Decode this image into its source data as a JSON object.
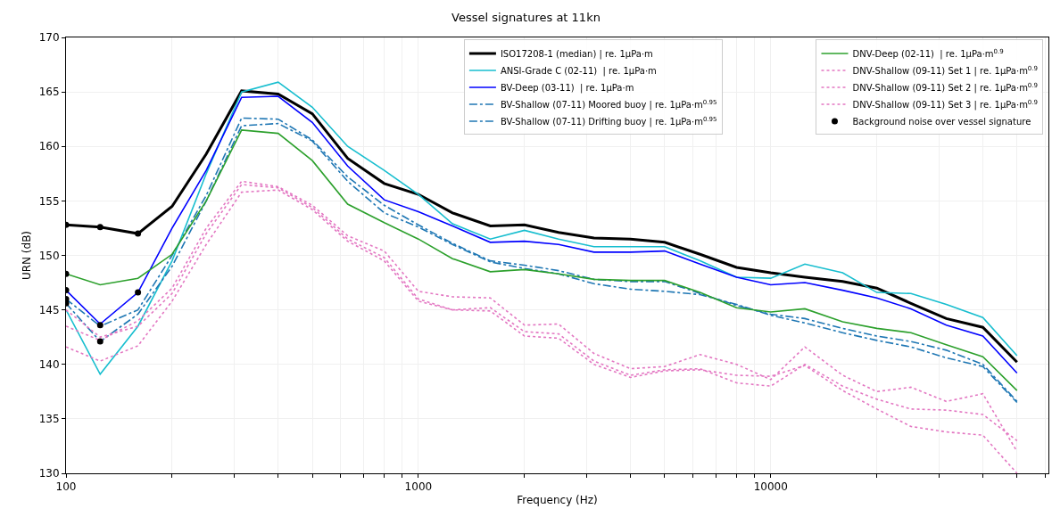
{
  "chart_data": {
    "type": "line",
    "title": "Vessel signatures at 11kn",
    "xlabel": "Frequency (Hz)",
    "ylabel": "URN (dB)",
    "x": [
      100,
      125,
      160,
      200,
      250,
      315,
      400,
      500,
      630,
      800,
      1000,
      1250,
      1600,
      2000,
      2500,
      3150,
      4000,
      5000,
      6300,
      8000,
      10000,
      12500,
      16000,
      20000,
      25000,
      31500,
      40000,
      50000
    ],
    "log": "x",
    "grid": true,
    "legend": "top right",
    "marker": "none",
    "xlim": [
      100,
      61400
    ],
    "ylim": [
      130,
      170
    ],
    "xticks": [
      100,
      {
        "value": 200,
        "label": null
      },
      {
        "value": 300,
        "label": null
      },
      {
        "value": 400,
        "label": null
      },
      {
        "value": 500,
        "label": null
      },
      {
        "value": 600,
        "label": null
      },
      {
        "value": 700,
        "label": null
      },
      {
        "value": 800,
        "label": null
      },
      {
        "value": 900,
        "label": null
      },
      1000,
      {
        "value": 2000,
        "label": null
      },
      {
        "value": 3000,
        "label": null
      },
      {
        "value": 4000,
        "label": null
      },
      {
        "value": 5000,
        "label": null
      },
      {
        "value": 6000,
        "label": null
      },
      {
        "value": 7000,
        "label": null
      },
      {
        "value": 8000,
        "label": null
      },
      {
        "value": 9000,
        "label": null
      },
      10000,
      {
        "value": 20000,
        "label": null
      },
      {
        "value": 30000,
        "label": null
      },
      {
        "value": 40000,
        "label": null
      },
      {
        "value": 50000,
        "label": null
      },
      {
        "value": 60000,
        "label": null
      }
    ],
    "yticks": [
      130,
      135,
      140,
      145,
      150,
      155,
      160,
      165,
      170
    ],
    "series": [
      {
        "name": "ISO17208-1 (median) | re. 1μPa·m",
        "color": "#000000",
        "line_style": "solid",
        "values": [
          152.8,
          152.6,
          152.0,
          154.5,
          159.3,
          165.1,
          164.8,
          163.0,
          158.9,
          156.6,
          155.6,
          153.9,
          152.7,
          152.8,
          152.1,
          151.6,
          151.5,
          151.2,
          150.1,
          148.9,
          148.4,
          148.0,
          147.6,
          147.0,
          145.6,
          144.2,
          143.4,
          140.2
        ]
      },
      {
        "name": "ANSI-Grade C (02-11)  | re. 1μPa·m",
        "color": "#17becf",
        "line_style": "solid",
        "values": [
          145.0,
          139.1,
          143.5,
          149.5,
          157.5,
          165.0,
          165.9,
          163.6,
          160.0,
          157.8,
          155.6,
          152.9,
          151.5,
          152.3,
          151.5,
          150.8,
          150.8,
          150.8,
          149.5,
          148.0,
          147.9,
          149.2,
          148.4,
          146.6,
          146.5,
          145.5,
          144.3,
          140.8
        ]
      },
      {
        "name": "BV-Deep (03-11)  | re. 1μPa·m",
        "color": "#0000ff",
        "line_style": "solid",
        "values": [
          146.8,
          143.7,
          146.6,
          152.5,
          157.8,
          164.5,
          164.6,
          162.2,
          158.2,
          155.1,
          154.0,
          152.7,
          151.2,
          151.3,
          151.0,
          150.3,
          150.3,
          150.4,
          149.2,
          148.0,
          147.3,
          147.5,
          146.8,
          146.1,
          145.1,
          143.6,
          142.6,
          139.2
        ]
      },
      {
        "name": "BV-Shallow (07-11) Moored buoy | re. 1μPa·m$^{0.95}$",
        "color": "#1f77b4",
        "line_style": "dashdot",
        "values": [
          146.0,
          143.5,
          145.0,
          150.0,
          155.5,
          162.6,
          162.5,
          160.6,
          157.2,
          154.6,
          152.8,
          151.1,
          149.5,
          149.1,
          148.6,
          147.8,
          147.6,
          147.6,
          146.5,
          145.4,
          144.6,
          144.2,
          143.3,
          142.6,
          142.1,
          141.3,
          140.0,
          136.6
        ]
      },
      {
        "name": "BV-Shallow (07-11) Drifting buoy | re. 1μPa·m$^{0.95}$",
        "color": "#1f77b4",
        "line_style": "dashdot",
        "values": [
          145.6,
          142.1,
          144.6,
          149.0,
          155.0,
          161.9,
          162.1,
          160.5,
          156.8,
          153.9,
          152.6,
          151.0,
          149.4,
          148.8,
          148.3,
          147.4,
          146.9,
          146.7,
          146.4,
          145.5,
          144.5,
          143.8,
          142.9,
          142.2,
          141.6,
          140.6,
          139.8,
          136.5
        ]
      },
      {
        "name": "DNV-Deep (02-11)  | re. 1μPa·m$^{0.9}$",
        "color": "#2ca02c",
        "line_style": "solid",
        "values": [
          148.3,
          147.3,
          147.9,
          150.1,
          155.0,
          161.5,
          161.2,
          158.7,
          154.7,
          153.0,
          151.5,
          149.7,
          148.5,
          148.7,
          148.3,
          147.8,
          147.7,
          147.7,
          146.6,
          145.2,
          144.8,
          145.1,
          143.9,
          143.3,
          142.9,
          141.8,
          140.7,
          137.6
        ]
      },
      {
        "name": "DNV-Shallow (09-11) Set 1 | re. 1μPa·m$^{0.9}$",
        "color": "#e377c2",
        "line_style": "dotted",
        "values": [
          143.5,
          142.2,
          144.0,
          147.0,
          152.5,
          156.8,
          156.3,
          154.6,
          151.8,
          150.4,
          146.7,
          146.2,
          146.1,
          143.6,
          143.7,
          141.0,
          139.6,
          139.8,
          140.9,
          140.0,
          138.6,
          141.6,
          139.0,
          137.5,
          137.9,
          136.6,
          137.3,
          132.0
        ]
      },
      {
        "name": "DNV-Shallow (09-11) Set 2 | re. 1μPa·m$^{0.9}$",
        "color": "#e377c2",
        "line_style": "dotted",
        "values": [
          145.0,
          142.5,
          143.5,
          146.5,
          152.0,
          156.5,
          156.2,
          154.4,
          151.5,
          149.8,
          146.0,
          145.0,
          145.2,
          143.0,
          142.8,
          140.3,
          139.0,
          139.5,
          139.6,
          138.3,
          138.0,
          140.0,
          138.0,
          136.8,
          135.9,
          135.8,
          135.4,
          133.0
        ]
      },
      {
        "name": "DNV-Shallow (09-11) Set 3 | re. 1μPa·m$^{0.9}$",
        "color": "#e377c2",
        "line_style": "dotted",
        "values": [
          141.6,
          140.3,
          141.7,
          145.8,
          151.0,
          155.8,
          156.0,
          154.2,
          151.3,
          149.5,
          145.8,
          145.0,
          144.9,
          142.6,
          142.4,
          140.0,
          138.8,
          139.4,
          139.5,
          139.0,
          138.9,
          139.9,
          137.6,
          135.9,
          134.3,
          133.8,
          133.5,
          130.0
        ]
      },
      {
        "name": "Background noise over vessel signature",
        "type": "scatter",
        "marker": "circle",
        "color": "#000000",
        "x": [
          100,
          100,
          100,
          100,
          100,
          125,
          125,
          125,
          160,
          160
        ],
        "values": [
          152.8,
          148.3,
          146.8,
          146.0,
          145.6,
          152.6,
          143.6,
          142.1,
          152.0,
          146.6
        ]
      }
    ]
  }
}
